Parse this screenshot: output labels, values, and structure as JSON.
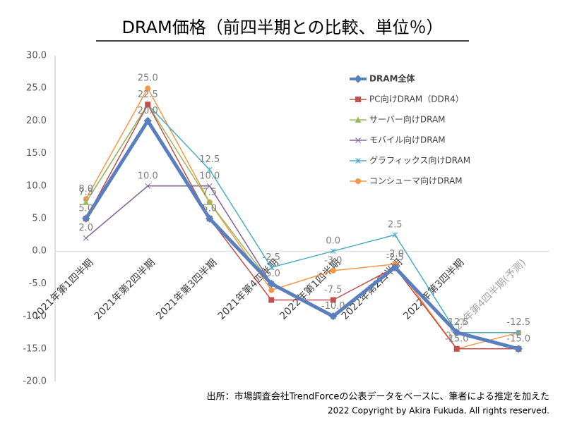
{
  "chart_data": {
    "type": "line",
    "title": "DRAM価格（前四半期との比較、単位％）",
    "categories": [
      "2021年第1四半期",
      "2021年第2四半期",
      "2021年第3四半期",
      "2021年第4四半期",
      "2022年第1四半期",
      "2022年第2四半期",
      "2022年第3四半期",
      "2022年第4四半期(予測)"
    ],
    "series": [
      {
        "name": "DRAM全体",
        "color": "#5a7fbf",
        "values": [
          5,
          20,
          5,
          -5,
          -10,
          -2.5,
          -12.5,
          -15
        ],
        "value_labels": [
          null,
          "20.0",
          "5.0",
          "-5.0",
          "-10.0",
          "-2.5",
          "-12.5",
          "-15.0"
        ]
      },
      {
        "name": "PC向けDRAM（DDR4）",
        "color": "#c0504d",
        "values": [
          5,
          22.5,
          5,
          -7.5,
          -7.5,
          -2.5,
          -15,
          -15
        ],
        "value_labels": [
          "5.0",
          "22.5",
          null,
          null,
          "-7.5",
          null,
          null,
          null
        ]
      },
      {
        "name": "サーバー向けDRAM",
        "color": "#9bbb59",
        "values": [
          7.5,
          22.5,
          7.5,
          -5,
          -10,
          -2.5,
          -12.5,
          -15
        ],
        "value_labels": [
          "7.5",
          null,
          "7.5",
          null,
          null,
          null,
          null,
          null
        ]
      },
      {
        "name": "モバイル向けDRAM",
        "color": "#8064a2",
        "values": [
          2,
          10,
          10,
          -5,
          -10,
          -2.5,
          -12.5,
          -15
        ],
        "value_labels": [
          "2.0",
          "10.0",
          "10.0",
          null,
          null,
          null,
          null,
          null
        ]
      },
      {
        "name": "グラフィックス向けDRAM",
        "color": "#4bacc6",
        "values": [
          7.5,
          22.5,
          12.5,
          -2.5,
          0,
          2.5,
          -12.5,
          -12.5
        ],
        "value_labels": [
          null,
          null,
          "12.5",
          "-2.5",
          "0.0",
          "2.5",
          null,
          "-12.5"
        ]
      },
      {
        "name": "コンシューマ向けDRAM",
        "color": "#f79646",
        "values": [
          8,
          25,
          7.5,
          -6,
          -3,
          -2,
          -15,
          -12.5
        ],
        "value_labels": [
          "8.0",
          "25.0",
          null,
          null,
          "-3.0",
          "-2.0",
          "-15.0",
          null
        ]
      }
    ],
    "ylim": [
      -20,
      30
    ],
    "yticks": [
      {
        "value": -20,
        "label": "-20.0"
      },
      {
        "value": -15,
        "label": "-15.0"
      },
      {
        "value": -10,
        "label": "-10.0"
      },
      {
        "value": -5,
        "label": "-5.0"
      },
      {
        "value": 0,
        "label": "0.0"
      },
      {
        "value": 5,
        "label": "5.0"
      },
      {
        "value": 10,
        "label": "10.0"
      },
      {
        "value": 15,
        "label": "15.0"
      },
      {
        "value": 20,
        "label": "20.0"
      },
      {
        "value": 25,
        "label": "25.0"
      },
      {
        "value": 30,
        "label": "30.0"
      }
    ],
    "grid": false,
    "legend": "upper right",
    "source": "出所：市場調査会社TrendForceの公表データをベースに、筆者による推定を加えた",
    "copyright": "2022 Copyright by Akira Fukuda. All rights reserved."
  }
}
